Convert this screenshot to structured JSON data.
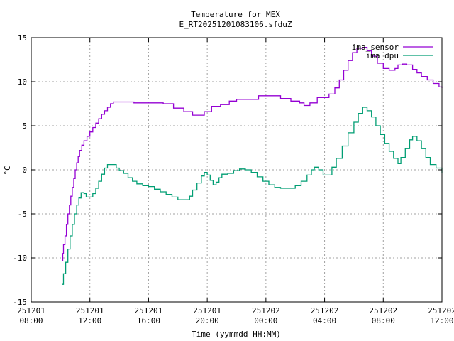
{
  "chart_data": {
    "type": "line",
    "title": "Temperature for MEX",
    "subtitle": "E_RT20251201083106.sfduZ",
    "xlabel": "Time (yymmdd HH:MM)",
    "ylabel": "°C",
    "grid": true,
    "legend_position": "top-right",
    "x_ticks": [
      {
        "date": "251201",
        "time": "08:00",
        "hours": 0
      },
      {
        "date": "251201",
        "time": "12:00",
        "hours": 4
      },
      {
        "date": "251201",
        "time": "16:00",
        "hours": 8
      },
      {
        "date": "251201",
        "time": "20:00",
        "hours": 12
      },
      {
        "date": "251202",
        "time": "00:00",
        "hours": 16
      },
      {
        "date": "251202",
        "time": "04:00",
        "hours": 20
      },
      {
        "date": "251202",
        "time": "08:00",
        "hours": 24
      },
      {
        "date": "251202",
        "time": "12:00",
        "hours": 28
      }
    ],
    "y_ticks": [
      "15",
      "10",
      "5",
      "0",
      "-5",
      "-10",
      "-15"
    ],
    "xlim_hours": [
      0,
      28
    ],
    "ylim": [
      -15,
      15
    ],
    "series": [
      {
        "name": "ima_sensor",
        "color": "#9400d3",
        "points": [
          [
            2.1,
            -10.3
          ],
          [
            2.15,
            -9.5
          ],
          [
            2.2,
            -8.5
          ],
          [
            2.3,
            -7.5
          ],
          [
            2.4,
            -6.2
          ],
          [
            2.5,
            -5.0
          ],
          [
            2.6,
            -4.0
          ],
          [
            2.7,
            -3.0
          ],
          [
            2.8,
            -2.0
          ],
          [
            2.9,
            -1.0
          ],
          [
            3.0,
            0.0
          ],
          [
            3.1,
            0.8
          ],
          [
            3.2,
            1.5
          ],
          [
            3.3,
            2.2
          ],
          [
            3.45,
            2.8
          ],
          [
            3.6,
            3.3
          ],
          [
            3.8,
            3.8
          ],
          [
            4.0,
            4.3
          ],
          [
            4.2,
            4.8
          ],
          [
            4.4,
            5.3
          ],
          [
            4.6,
            5.8
          ],
          [
            4.8,
            6.3
          ],
          [
            5.0,
            6.7
          ],
          [
            5.2,
            7.1
          ],
          [
            5.4,
            7.5
          ],
          [
            5.6,
            7.7
          ],
          [
            6.0,
            7.7
          ],
          [
            6.5,
            7.7
          ],
          [
            7.0,
            7.6
          ],
          [
            8.0,
            7.6
          ],
          [
            9.0,
            7.5
          ],
          [
            9.7,
            7.0
          ],
          [
            10.4,
            6.6
          ],
          [
            11.0,
            6.2
          ],
          [
            11.8,
            6.6
          ],
          [
            12.3,
            7.2
          ],
          [
            12.9,
            7.4
          ],
          [
            13.5,
            7.8
          ],
          [
            14.0,
            8.0
          ],
          [
            15.0,
            8.0
          ],
          [
            15.5,
            8.4
          ],
          [
            16.4,
            8.4
          ],
          [
            17.0,
            8.1
          ],
          [
            17.7,
            7.8
          ],
          [
            18.3,
            7.6
          ],
          [
            18.6,
            7.3
          ],
          [
            19.0,
            7.6
          ],
          [
            19.5,
            8.2
          ],
          [
            20.0,
            8.2
          ],
          [
            20.3,
            8.6
          ],
          [
            20.7,
            9.3
          ],
          [
            21.0,
            10.2
          ],
          [
            21.3,
            11.3
          ],
          [
            21.6,
            12.4
          ],
          [
            21.9,
            13.3
          ],
          [
            22.2,
            13.8
          ],
          [
            22.6,
            13.9
          ],
          [
            22.9,
            13.5
          ],
          [
            23.2,
            12.9
          ],
          [
            23.6,
            12.1
          ],
          [
            24.0,
            11.5
          ],
          [
            24.4,
            11.3
          ],
          [
            24.8,
            11.5
          ],
          [
            25.0,
            11.9
          ],
          [
            25.3,
            12.0
          ],
          [
            25.6,
            11.9
          ],
          [
            26.0,
            11.4
          ],
          [
            26.3,
            11.0
          ],
          [
            26.6,
            10.6
          ],
          [
            27.0,
            10.2
          ],
          [
            27.4,
            9.8
          ],
          [
            27.8,
            9.4
          ],
          [
            28.0,
            9.3
          ]
        ]
      },
      {
        "name": "ima_dpu",
        "color": "#009e73",
        "points": [
          [
            2.1,
            -13.0
          ],
          [
            2.2,
            -11.8
          ],
          [
            2.35,
            -10.5
          ],
          [
            2.5,
            -9.0
          ],
          [
            2.65,
            -7.5
          ],
          [
            2.8,
            -6.2
          ],
          [
            2.95,
            -5.0
          ],
          [
            3.1,
            -4.0
          ],
          [
            3.25,
            -3.2
          ],
          [
            3.4,
            -2.6
          ],
          [
            3.6,
            -2.7
          ],
          [
            3.75,
            -3.1
          ],
          [
            4.0,
            -3.1
          ],
          [
            4.2,
            -2.7
          ],
          [
            4.4,
            -2.1
          ],
          [
            4.6,
            -1.3
          ],
          [
            4.8,
            -0.5
          ],
          [
            5.0,
            0.2
          ],
          [
            5.2,
            0.6
          ],
          [
            5.5,
            0.6
          ],
          [
            5.8,
            0.2
          ],
          [
            6.0,
            -0.1
          ],
          [
            6.3,
            -0.4
          ],
          [
            6.6,
            -0.9
          ],
          [
            6.9,
            -1.3
          ],
          [
            7.2,
            -1.6
          ],
          [
            7.6,
            -1.8
          ],
          [
            8.0,
            -1.9
          ],
          [
            8.4,
            -2.2
          ],
          [
            8.8,
            -2.5
          ],
          [
            9.2,
            -2.8
          ],
          [
            9.6,
            -3.1
          ],
          [
            10.0,
            -3.4
          ],
          [
            10.4,
            -3.4
          ],
          [
            10.8,
            -3.0
          ],
          [
            11.0,
            -2.3
          ],
          [
            11.3,
            -1.5
          ],
          [
            11.6,
            -0.7
          ],
          [
            11.8,
            -0.3
          ],
          [
            12.0,
            -0.6
          ],
          [
            12.2,
            -1.2
          ],
          [
            12.4,
            -1.7
          ],
          [
            12.6,
            -1.4
          ],
          [
            12.8,
            -0.9
          ],
          [
            13.0,
            -0.5
          ],
          [
            13.4,
            -0.4
          ],
          [
            13.8,
            -0.1
          ],
          [
            14.2,
            0.1
          ],
          [
            14.6,
            0.0
          ],
          [
            15.0,
            -0.3
          ],
          [
            15.4,
            -0.8
          ],
          [
            15.8,
            -1.3
          ],
          [
            16.2,
            -1.7
          ],
          [
            16.6,
            -2.0
          ],
          [
            17.0,
            -2.1
          ],
          [
            17.5,
            -2.1
          ],
          [
            18.0,
            -1.8
          ],
          [
            18.4,
            -1.3
          ],
          [
            18.8,
            -0.6
          ],
          [
            19.1,
            0.0
          ],
          [
            19.3,
            0.3
          ],
          [
            19.6,
            0.0
          ],
          [
            19.9,
            -0.6
          ],
          [
            20.2,
            -0.6
          ],
          [
            20.5,
            0.3
          ],
          [
            20.8,
            1.3
          ],
          [
            21.2,
            2.7
          ],
          [
            21.6,
            4.2
          ],
          [
            22.0,
            5.4
          ],
          [
            22.3,
            6.4
          ],
          [
            22.6,
            7.1
          ],
          [
            22.9,
            6.7
          ],
          [
            23.2,
            6.0
          ],
          [
            23.5,
            5.0
          ],
          [
            23.8,
            4.0
          ],
          [
            24.1,
            3.0
          ],
          [
            24.4,
            2.1
          ],
          [
            24.7,
            1.3
          ],
          [
            25.0,
            0.7
          ],
          [
            25.2,
            1.4
          ],
          [
            25.5,
            2.4
          ],
          [
            25.8,
            3.4
          ],
          [
            26.0,
            3.8
          ],
          [
            26.3,
            3.3
          ],
          [
            26.6,
            2.4
          ],
          [
            26.9,
            1.4
          ],
          [
            27.2,
            0.6
          ],
          [
            27.6,
            0.2
          ],
          [
            28.0,
            -0.4
          ]
        ]
      }
    ]
  }
}
